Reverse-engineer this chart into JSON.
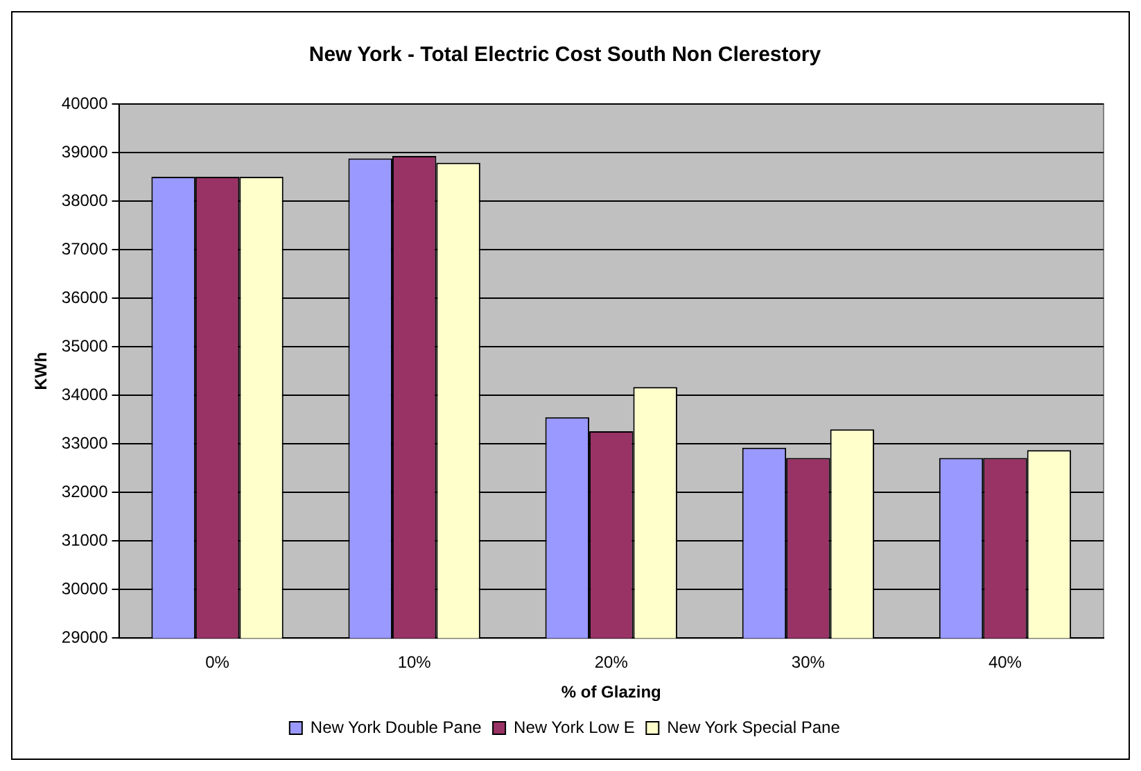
{
  "chart_data": {
    "type": "bar",
    "title": "New York - Total Electric Cost South Non Clerestory",
    "xlabel": "% of Glazing",
    "ylabel": "KWh",
    "categories": [
      "0%",
      "10%",
      "20%",
      "30%",
      "40%"
    ],
    "series": [
      {
        "name": "New York Double Pane",
        "color": "#9999ff",
        "values": [
          38500,
          38880,
          33550,
          32920,
          32710
        ]
      },
      {
        "name": "New York Low E",
        "color": "#993366",
        "values": [
          38500,
          38930,
          33260,
          32710,
          32710
        ]
      },
      {
        "name": "New York Special Pane",
        "color": "#ffffcc",
        "values": [
          38500,
          38790,
          34170,
          33300,
          32870
        ]
      }
    ],
    "ylim": [
      29000,
      40000
    ],
    "yticks": [
      29000,
      30000,
      31000,
      32000,
      33000,
      34000,
      35000,
      36000,
      37000,
      38000,
      39000,
      40000
    ],
    "grid": "y",
    "legend": "bottom"
  }
}
